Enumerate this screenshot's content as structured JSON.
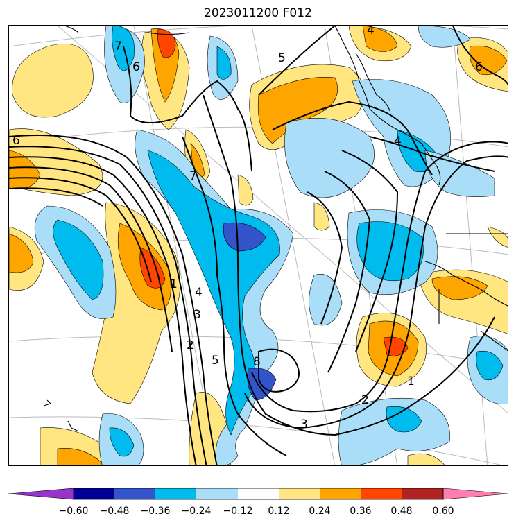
{
  "title": "2023011200 F012",
  "colors": {
    "c_lt_neg_060": "#9933cc",
    "c_neg_060_048": "#000099",
    "c_neg_048_036": "#3355cc",
    "c_neg_036_024": "#00bbee",
    "c_neg_024_012": "#aaddf8",
    "c_neutral": "#ffffff",
    "c_012_024": "#ffe680",
    "c_024_036": "#ffa500",
    "c_036_048": "#ff4500",
    "c_048_060": "#b22222",
    "c_gt_060": "#ff7fb0",
    "contour": "#000000",
    "coast": "#000000",
    "graticule": "#bbbbbb"
  },
  "colorbar": {
    "ticks": [
      "−0.60",
      "−0.48",
      "−0.36",
      "−0.24",
      "−0.12",
      "0.12",
      "0.24",
      "0.36",
      "0.48",
      "0.60"
    ],
    "extend": "both"
  },
  "contour_labels": [
    "1",
    "2",
    "3",
    "4",
    "5",
    "6",
    "7",
    "8"
  ]
}
